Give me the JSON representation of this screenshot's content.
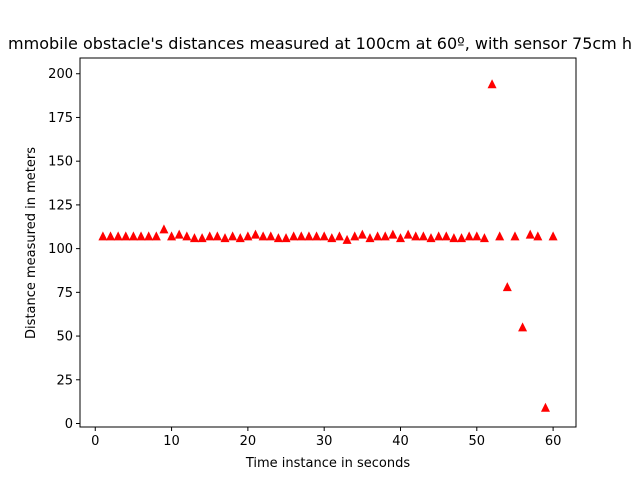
{
  "chart_data": {
    "type": "scatter",
    "title": "mmobile obstacle's distances measured at 100cm at 60º, with sensor 75cm h",
    "xlabel": "Time instance in seconds",
    "ylabel": "Distance measured in meters",
    "xlim": [
      -2,
      63
    ],
    "ylim": [
      -2,
      209
    ],
    "xticks": [
      0,
      10,
      20,
      30,
      40,
      50,
      60
    ],
    "yticks": [
      0,
      25,
      50,
      75,
      100,
      125,
      150,
      175,
      200
    ],
    "grid": false,
    "marker": "triangle",
    "color": "#ff0000",
    "series": [
      {
        "x": [
          1,
          2,
          3,
          4,
          5,
          6,
          7,
          8,
          9,
          10,
          11,
          12,
          13,
          14,
          15,
          16,
          17,
          18,
          19,
          20,
          21,
          22,
          23,
          24,
          25,
          26,
          27,
          28,
          29,
          30,
          31,
          32,
          33,
          34,
          35,
          36,
          37,
          38,
          39,
          40,
          41,
          42,
          43,
          44,
          45,
          46,
          47,
          48,
          49,
          50,
          51,
          52,
          53,
          54,
          55,
          56,
          57,
          58,
          59,
          60
        ],
        "y": [
          107,
          107,
          107,
          107,
          107,
          107,
          107,
          107,
          111,
          107,
          108,
          107,
          106,
          106,
          107,
          107,
          106,
          107,
          106,
          107,
          108,
          107,
          107,
          106,
          106,
          107,
          107,
          107,
          107,
          107,
          106,
          107,
          105,
          107,
          108,
          106,
          107,
          107,
          108,
          106,
          108,
          107,
          107,
          106,
          107,
          107,
          106,
          106,
          107,
          107,
          106,
          194,
          107,
          78,
          107,
          55,
          108,
          107,
          9,
          107
        ]
      }
    ]
  }
}
